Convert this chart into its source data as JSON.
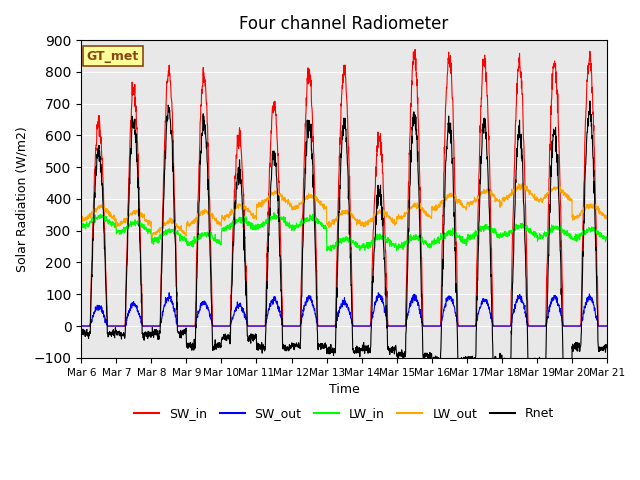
{
  "title": "Four channel Radiometer",
  "xlabel": "Time",
  "ylabel": "Solar Radiation (W/m2)",
  "ylim": [
    -100,
    900
  ],
  "background_color": "#e8e8e8",
  "grid_color": "#ffffff",
  "legend_labels": [
    "SW_in",
    "SW_out",
    "LW_in",
    "LW_out",
    "Rnet"
  ],
  "legend_colors": [
    "#ff0000",
    "#0000ff",
    "#00ff00",
    "#ffa500",
    "#000000"
  ],
  "station_label": "GT_met",
  "station_label_fgcolor": "#8B4513",
  "station_label_bgcolor": "#ffff99",
  "station_label_edgecolor": "#8B4513",
  "x_tick_labels": [
    "Mar 6",
    "Mar 7",
    "Mar 8",
    "Mar 9",
    "Mar 10",
    "Mar 11",
    "Mar 12",
    "Mar 13",
    "Mar 14",
    "Mar 15",
    "Mar 16",
    "Mar 17",
    "Mar 18",
    "Mar 19",
    "Mar 20",
    "Mar 21"
  ],
  "num_days": 15,
  "SW_in_peaks": [
    640,
    740,
    800,
    790,
    600,
    700,
    800,
    800,
    590,
    855,
    845,
    835,
    830,
    825,
    845
  ],
  "SW_out_peaks": [
    60,
    70,
    90,
    75,
    65,
    85,
    90,
    75,
    95,
    90,
    90,
    85,
    90,
    90,
    90
  ],
  "LW_in_base": [
    330,
    310,
    285,
    275,
    320,
    330,
    325,
    260,
    265,
    265,
    280,
    295,
    300,
    295,
    290
  ],
  "LW_out_base": [
    355,
    340,
    310,
    340,
    360,
    400,
    390,
    340,
    340,
    360,
    390,
    405,
    420,
    415,
    360
  ],
  "figsize": [
    6.4,
    4.8
  ],
  "dpi": 100
}
